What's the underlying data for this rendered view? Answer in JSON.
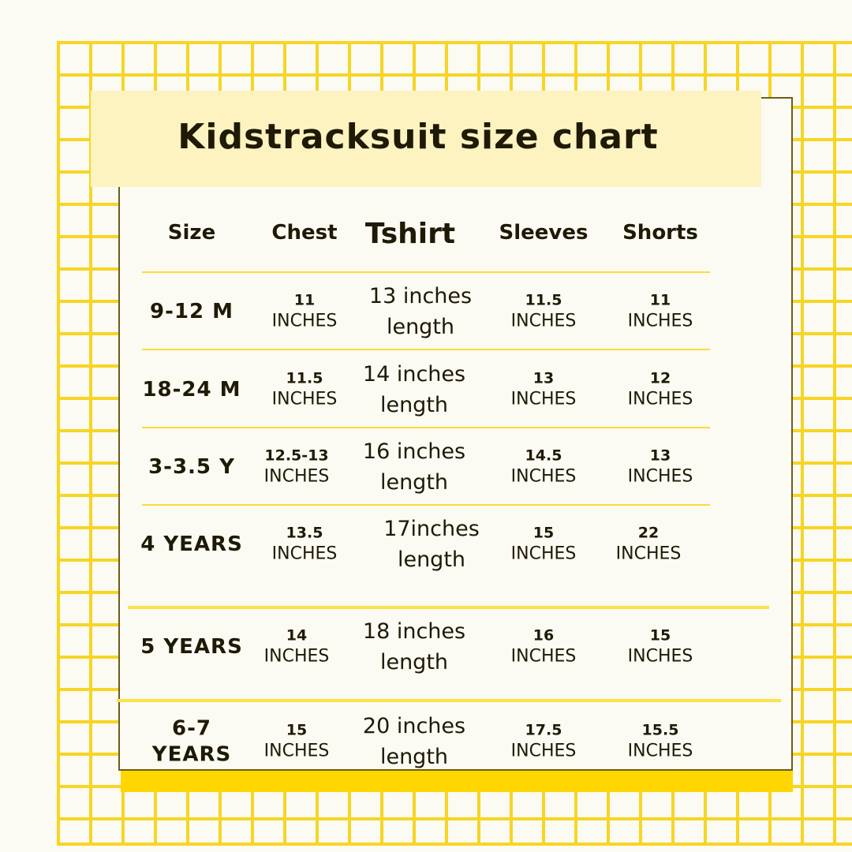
{
  "title": "Kidstracksuit size chart",
  "colors": {
    "grid": "#f7d523",
    "title_band": "#fdf3c0",
    "bottom_bar": "#ffd600",
    "border": "#6b5d1a"
  },
  "headers": [
    "Size",
    "Chest",
    "Tshirt",
    "Sleeves",
    "Shorts"
  ],
  "rows": [
    {
      "size": "9-12 M",
      "chest": [
        "11",
        "INCHES"
      ],
      "tshirt": "13 inches\nlength",
      "sleeves": [
        "11.5",
        "INCHES"
      ],
      "shorts": [
        "11",
        "INCHES"
      ]
    },
    {
      "size": "18-24 M",
      "chest": [
        "11.5",
        "INCHES"
      ],
      "tshirt": "14 inches\nlength",
      "sleeves": [
        "13",
        "INCHES"
      ],
      "shorts": [
        "12",
        "INCHES"
      ]
    },
    {
      "size": "3-3.5 Y",
      "chest": [
        "12.5-13",
        "INCHES"
      ],
      "tshirt": "16 inches\nlength",
      "sleeves": [
        "14.5",
        "INCHES"
      ],
      "shorts": [
        "13",
        "INCHES"
      ]
    },
    {
      "size": "4 YEARS",
      "chest": [
        "13.5",
        "INCHES"
      ],
      "tshirt": "17inches\nlength",
      "sleeves": [
        "15",
        "INCHES"
      ],
      "shorts": [
        "22",
        "INCHES"
      ]
    },
    {
      "size": "5 YEARS",
      "chest": [
        "14",
        "INCHES"
      ],
      "tshirt": "18 inches\nlength",
      "sleeves": [
        "16",
        "INCHES"
      ],
      "shorts": [
        "15",
        "INCHES"
      ]
    },
    {
      "size": "6-7\nYEARS",
      "chest": [
        "15",
        "INCHES"
      ],
      "tshirt": "20 inches\nlength",
      "sleeves": [
        "17.5",
        "INCHES"
      ],
      "shorts": [
        "15.5",
        "INCHES"
      ]
    }
  ]
}
